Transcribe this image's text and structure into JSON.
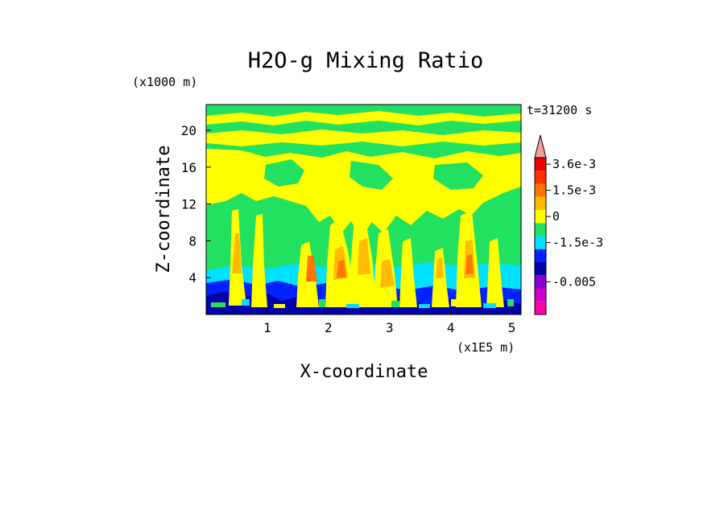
{
  "chart_data": {
    "type": "heatmap",
    "title": "H2O-g Mixing Ratio",
    "xlabel": "X-coordinate",
    "ylabel": "Z-coordinate",
    "x_unit": "(x1E5 m)",
    "y_unit": "(x1000 m)",
    "time_label": "t=31200 s",
    "xlim": [
      0,
      5.15
    ],
    "ylim": [
      0,
      22.8
    ],
    "x_ticks": [
      1,
      2,
      3,
      4,
      5
    ],
    "y_ticks": [
      4,
      8,
      12,
      16,
      20
    ],
    "colorbar": {
      "labels": [
        "3.6e-3",
        "1.5e-3",
        "0",
        "-1.5e-3",
        "-0.005"
      ],
      "levels": [
        {
          "color": "#ff00aa"
        },
        {
          "color": "#cc00cc"
        },
        {
          "color": "#8800cc"
        },
        {
          "color": "#0000aa"
        },
        {
          "color": "#0022ff"
        },
        {
          "color": "#00e0ff"
        },
        {
          "color": "#22e060"
        },
        {
          "color": "#ffff00"
        },
        {
          "color": "#ffbb00"
        },
        {
          "color": "#ff7700"
        },
        {
          "color": "#ff3300"
        },
        {
          "color": "#ee0000"
        },
        {
          "color": "#f0a0a0"
        }
      ]
    }
  }
}
